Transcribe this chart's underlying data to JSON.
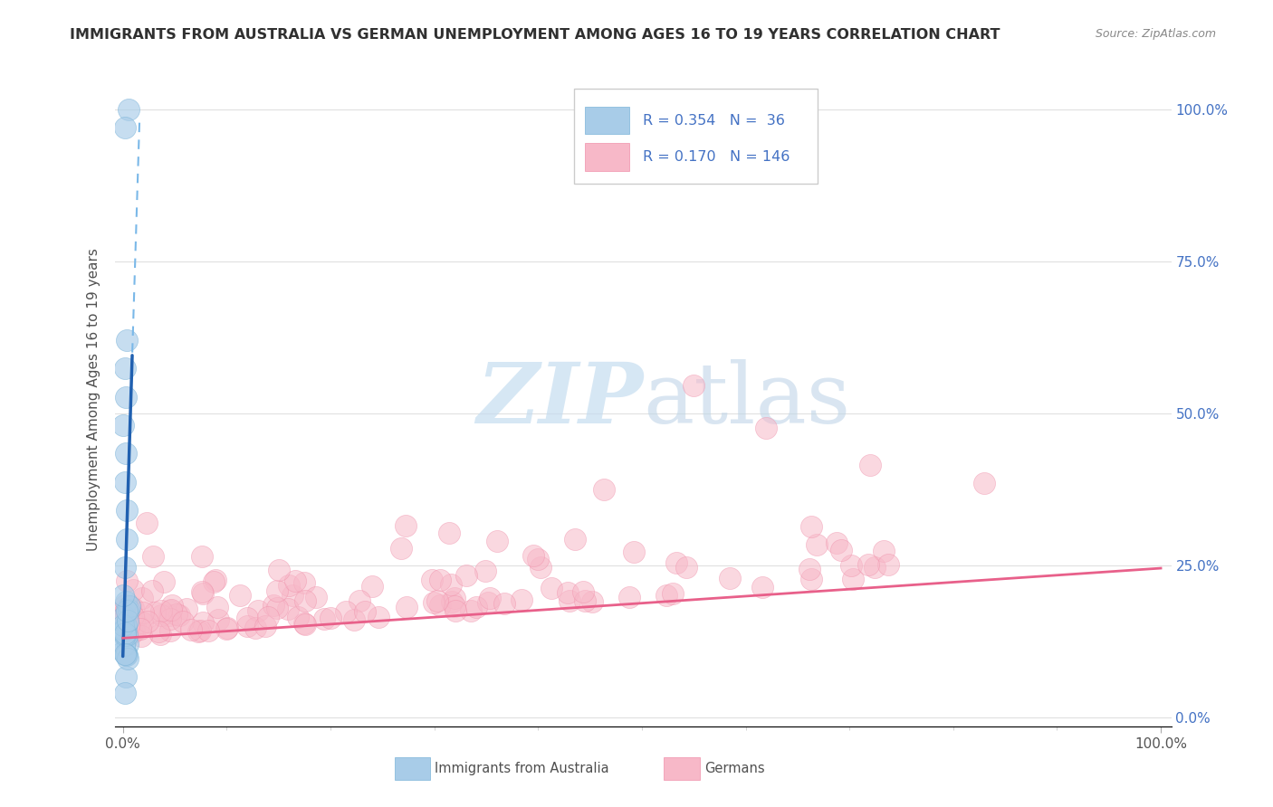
{
  "title": "IMMIGRANTS FROM AUSTRALIA VS GERMAN UNEMPLOYMENT AMONG AGES 16 TO 19 YEARS CORRELATION CHART",
  "source": "Source: ZipAtlas.com",
  "ylabel": "Unemployment Among Ages 16 to 19 years",
  "legend_R_blue": "0.354",
  "legend_N_blue": "36",
  "legend_R_pink": "0.170",
  "legend_N_pink": "146",
  "blue_color": "#a8cce8",
  "blue_color_edge": "#7ab3d8",
  "pink_color": "#f7b8c8",
  "pink_color_edge": "#f090aa",
  "blue_line_color": "#2060b0",
  "blue_dash_color": "#7ab8e8",
  "pink_line_color": "#e8608a",
  "watermark_color": "#d8e8f0",
  "legend_text_color": "#4472c4",
  "right_tick_color": "#4472c4",
  "grid_color": "#e0e0e0",
  "title_color": "#303030",
  "label_color": "#505050",
  "bottom_label_color": "#505050"
}
